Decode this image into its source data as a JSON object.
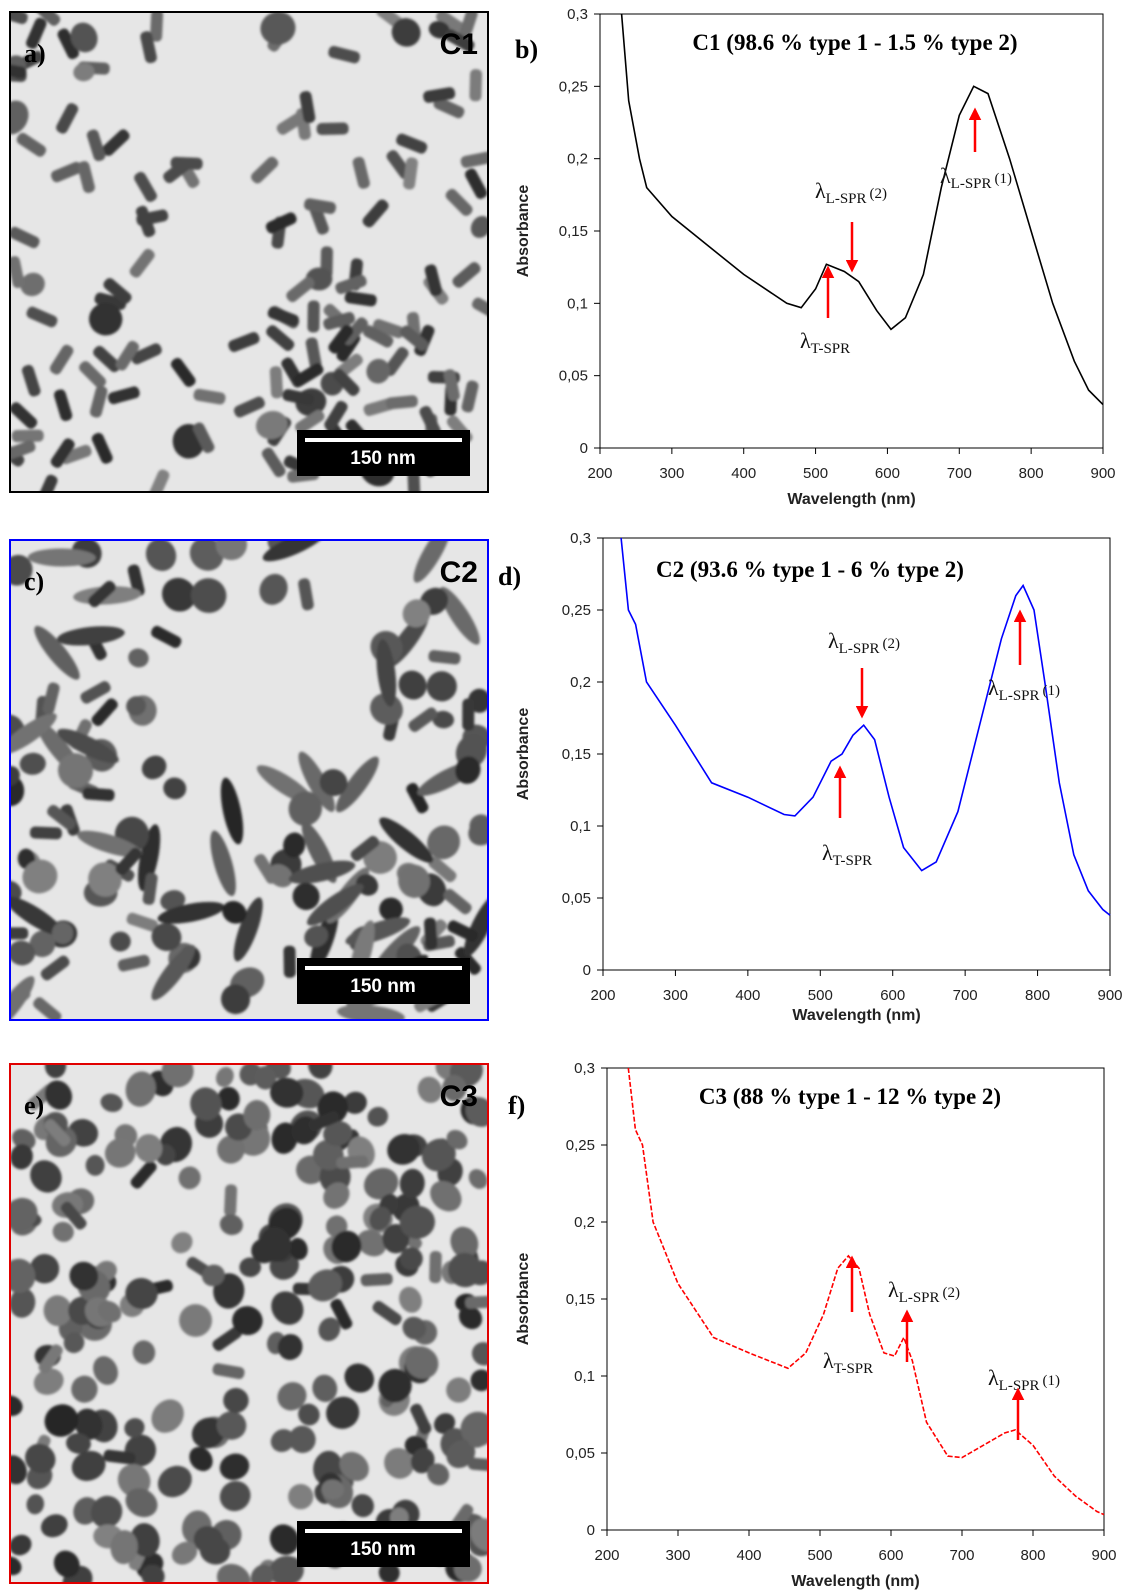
{
  "images": [
    {
      "label": "a)",
      "sample": "C1",
      "scale": "150 nm",
      "border": "#000000"
    },
    {
      "label": "c)",
      "sample": "C2",
      "scale": "150 nm",
      "border": "#0000ff"
    },
    {
      "label": "e)",
      "sample": "C3",
      "scale": "150 nm",
      "border": "#e00000"
    }
  ],
  "chart_data": [
    {
      "type": "line",
      "panel": "b)",
      "title": "C1 (98.6 % type 1 - 1.5 % type 2)",
      "xlabel": "Wavelength (nm)",
      "ylabel": "Absorbance",
      "xlim": [
        200,
        900
      ],
      "ylim": [
        0,
        0.3
      ],
      "xticks": [
        200,
        300,
        400,
        500,
        600,
        700,
        800,
        900
      ],
      "yticks": [
        0,
        {
          "value": 0.05,
          "label": "0,05"
        },
        {
          "value": 0.1,
          "label": "0,1"
        },
        {
          "value": 0.15,
          "label": "0,15"
        },
        {
          "value": 0.2,
          "label": "0,2"
        },
        {
          "value": 0.25,
          "label": "0,25"
        },
        {
          "value": 0.3,
          "label": "0,3"
        }
      ],
      "x": [
        230,
        240,
        255,
        265,
        300,
        350,
        400,
        460,
        480,
        500,
        515,
        540,
        560,
        585,
        605,
        625,
        650,
        675,
        700,
        720,
        740,
        770,
        800,
        830,
        860,
        880,
        900
      ],
      "series": [
        {
          "color": "#000000",
          "linestyle": "solid",
          "values": [
            0.3,
            0.24,
            0.2,
            0.18,
            0.16,
            0.14,
            0.12,
            0.1,
            0.097,
            0.11,
            0.127,
            0.122,
            0.115,
            0.095,
            0.082,
            0.09,
            0.12,
            0.18,
            0.23,
            0.25,
            0.245,
            0.2,
            0.15,
            0.1,
            0.06,
            0.04,
            0.03
          ]
        }
      ],
      "annotations": [
        {
          "symbol": "λ",
          "sub": "L-SPR",
          "suffix": "(2)"
        },
        {
          "symbol": "λ",
          "sub": "T-SPR"
        },
        {
          "symbol": "λ",
          "sub": "L-SPR",
          "suffix": "(1)"
        }
      ]
    },
    {
      "type": "line",
      "panel": "d)",
      "title": "C2 (93.6 % type 1 - 6 % type 2)",
      "xlabel": "Wavelength (nm)",
      "ylabel": "Absorbance",
      "xlim": [
        200,
        900
      ],
      "ylim": [
        0,
        0.3
      ],
      "xticks": [
        200,
        300,
        400,
        500,
        600,
        700,
        800,
        900
      ],
      "yticks": [
        0,
        {
          "value": 0.05,
          "label": "0,05"
        },
        {
          "value": 0.1,
          "label": "0,1"
        },
        {
          "value": 0.15,
          "label": "0,15"
        },
        {
          "value": 0.2,
          "label": "0,2"
        },
        {
          "value": 0.25,
          "label": "0,25"
        },
        {
          "value": 0.3,
          "label": "0,3"
        }
      ],
      "x": [
        225,
        235,
        245,
        260,
        300,
        350,
        400,
        450,
        465,
        490,
        515,
        530,
        545,
        560,
        575,
        595,
        615,
        640,
        660,
        690,
        720,
        750,
        770,
        780,
        795,
        810,
        830,
        850,
        870,
        890,
        900
      ],
      "series": [
        {
          "color": "#0000ff",
          "linestyle": "solid",
          "values": [
            0.3,
            0.25,
            0.24,
            0.2,
            0.17,
            0.13,
            0.12,
            0.108,
            0.107,
            0.12,
            0.145,
            0.15,
            0.163,
            0.17,
            0.16,
            0.12,
            0.085,
            0.069,
            0.075,
            0.11,
            0.17,
            0.23,
            0.26,
            0.267,
            0.25,
            0.2,
            0.13,
            0.08,
            0.055,
            0.042,
            0.038
          ]
        }
      ],
      "annotations": [
        {
          "symbol": "λ",
          "sub": "L-SPR",
          "suffix": "(2)"
        },
        {
          "symbol": "λ",
          "sub": "T-SPR"
        },
        {
          "symbol": "λ",
          "sub": "L-SPR",
          "suffix": "(1)"
        }
      ]
    },
    {
      "type": "line",
      "panel": "f)",
      "title": "C3 (88 % type 1 - 12 % type 2)",
      "xlabel": "Wavelength (nm)",
      "ylabel": "Absorbance",
      "xlim": [
        200,
        900
      ],
      "ylim": [
        0,
        0.3
      ],
      "xticks": [
        200,
        300,
        400,
        500,
        600,
        700,
        800,
        900
      ],
      "yticks": [
        0,
        {
          "value": 0.05,
          "label": "0,05"
        },
        {
          "value": 0.1,
          "label": "0,1"
        },
        {
          "value": 0.15,
          "label": "0,15"
        },
        {
          "value": 0.2,
          "label": "0,2"
        },
        {
          "value": 0.25,
          "label": "0,25"
        },
        {
          "value": 0.3,
          "label": "0,3"
        }
      ],
      "x": [
        230,
        240,
        250,
        265,
        300,
        350,
        400,
        455,
        480,
        505,
        525,
        540,
        555,
        570,
        590,
        605,
        618,
        630,
        650,
        680,
        700,
        730,
        760,
        775,
        800,
        830,
        860,
        890,
        900
      ],
      "series": [
        {
          "color": "#ff0000",
          "linestyle": "dashed",
          "values": [
            0.3,
            0.26,
            0.25,
            0.2,
            0.16,
            0.125,
            0.115,
            0.105,
            0.115,
            0.14,
            0.17,
            0.178,
            0.17,
            0.14,
            0.115,
            0.113,
            0.125,
            0.11,
            0.07,
            0.048,
            0.047,
            0.055,
            0.063,
            0.065,
            0.055,
            0.035,
            0.022,
            0.012,
            0.01
          ]
        }
      ],
      "annotations": [
        {
          "symbol": "λ",
          "sub": "L-SPR",
          "suffix": "(2)"
        },
        {
          "symbol": "λ",
          "sub": "T-SPR"
        },
        {
          "symbol": "λ",
          "sub": "L-SPR",
          "suffix": "(1)"
        }
      ]
    }
  ]
}
